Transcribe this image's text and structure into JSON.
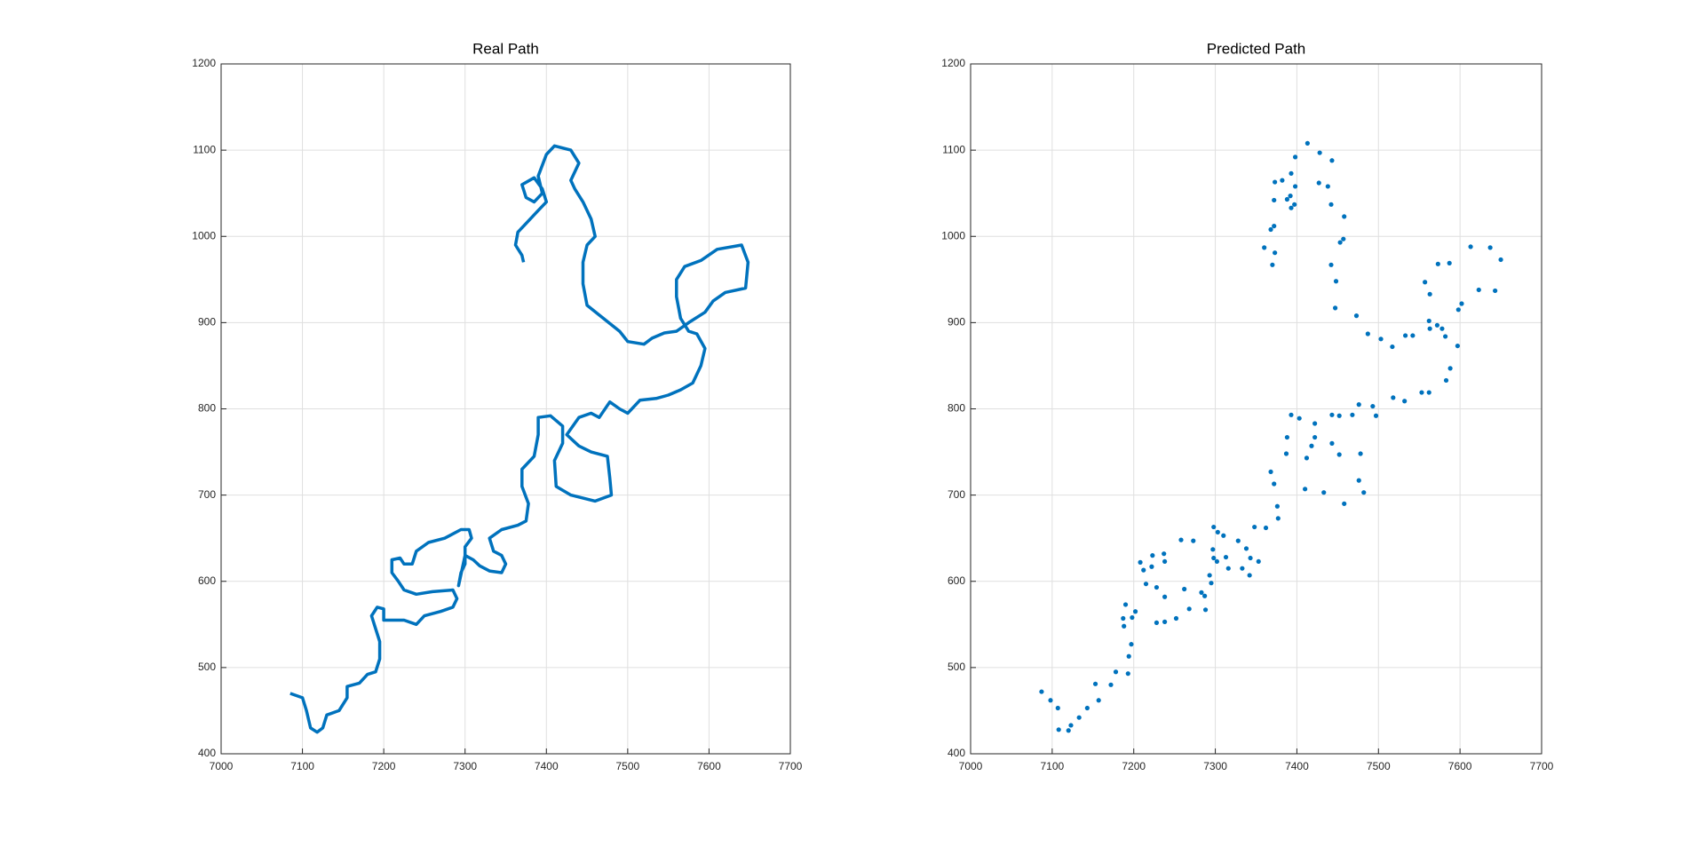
{
  "chart_data": [
    {
      "type": "line",
      "title": "Real Path",
      "color": "#0072bd",
      "grid": true,
      "xlim": [
        7000,
        7700
      ],
      "ylim": [
        400,
        1200
      ],
      "xticks": [
        7000,
        7100,
        7200,
        7300,
        7400,
        7500,
        7600,
        7700
      ],
      "yticks": [
        400,
        500,
        600,
        700,
        800,
        900,
        1000,
        1100,
        1200
      ],
      "x": [
        7085,
        7100,
        7105,
        7110,
        7118,
        7125,
        7130,
        7145,
        7155,
        7155,
        7170,
        7180,
        7190,
        7195,
        7195,
        7190,
        7185,
        7192,
        7200,
        7200,
        7225,
        7240,
        7250,
        7270,
        7285,
        7290,
        7285,
        7260,
        7240,
        7225,
        7218,
        7210,
        7210,
        7220,
        7225,
        7235,
        7240,
        7255,
        7275,
        7295,
        7305,
        7308,
        7300,
        7300,
        7295,
        7292,
        7300,
        7310,
        7318,
        7330,
        7345,
        7350,
        7345,
        7335,
        7330,
        7345,
        7365,
        7375,
        7378,
        7370,
        7370,
        7385,
        7390,
        7390,
        7405,
        7420,
        7420,
        7410,
        7412,
        7430,
        7460,
        7480,
        7478,
        7475,
        7455,
        7440,
        7425,
        7440,
        7455,
        7465,
        7478,
        7490,
        7500,
        7515,
        7535,
        7550,
        7565,
        7580,
        7590,
        7595,
        7585,
        7575,
        7565,
        7560,
        7560,
        7570,
        7590,
        7610,
        7640,
        7648,
        7645,
        7620,
        7605,
        7595,
        7575,
        7560,
        7545,
        7530,
        7520,
        7500,
        7490,
        7470,
        7450,
        7445,
        7445,
        7450,
        7460,
        7455,
        7445,
        7435,
        7430,
        7440,
        7430,
        7410,
        7400,
        7390,
        7395,
        7385,
        7375,
        7370,
        7385,
        7395,
        7400,
        7390,
        7375,
        7365,
        7362,
        7370,
        7372
      ],
      "values": [
        470,
        465,
        450,
        430,
        425,
        430,
        445,
        450,
        465,
        478,
        482,
        492,
        495,
        510,
        530,
        545,
        560,
        570,
        568,
        555,
        555,
        550,
        560,
        565,
        570,
        580,
        590,
        588,
        585,
        590,
        600,
        610,
        625,
        627,
        620,
        620,
        635,
        645,
        650,
        660,
        660,
        650,
        640,
        620,
        610,
        595,
        630,
        625,
        618,
        612,
        610,
        620,
        630,
        635,
        650,
        660,
        665,
        670,
        690,
        710,
        730,
        745,
        770,
        790,
        792,
        780,
        760,
        740,
        710,
        700,
        693,
        700,
        720,
        745,
        750,
        757,
        770,
        790,
        795,
        790,
        808,
        800,
        795,
        810,
        812,
        816,
        822,
        830,
        850,
        870,
        887,
        890,
        905,
        930,
        950,
        965,
        972,
        985,
        990,
        970,
        940,
        935,
        925,
        912,
        900,
        890,
        888,
        882,
        875,
        878,
        890,
        905,
        920,
        945,
        970,
        990,
        1000,
        1020,
        1040,
        1055,
        1065,
        1085,
        1100,
        1105,
        1095,
        1070,
        1050,
        1040,
        1045,
        1060,
        1068,
        1055,
        1040,
        1030,
        1015,
        1005,
        990,
        978,
        970
      ]
    },
    {
      "type": "scatter",
      "title": "Predicted Path",
      "color": "#0072bd",
      "grid": true,
      "xlim": [
        7000,
        7700
      ],
      "ylim": [
        400,
        1200
      ],
      "xticks": [
        7000,
        7100,
        7200,
        7300,
        7400,
        7500,
        7600,
        7700
      ],
      "yticks": [
        400,
        500,
        600,
        700,
        800,
        900,
        1000,
        1100,
        1200
      ],
      "x": [
        7087,
        7098,
        7107,
        7108,
        7120,
        7123,
        7133,
        7143,
        7157,
        7153,
        7172,
        7178,
        7193,
        7194,
        7197,
        7188,
        7187,
        7190,
        7202,
        7198,
        7228,
        7238,
        7252,
        7268,
        7288,
        7287,
        7283,
        7262,
        7238,
        7228,
        7215,
        7212,
        7208,
        7223,
        7222,
        7238,
        7237,
        7258,
        7273,
        7298,
        7303,
        7310,
        7297,
        7302,
        7293,
        7295,
        7298,
        7313,
        7316,
        7333,
        7342,
        7353,
        7343,
        7338,
        7328,
        7348,
        7362,
        7377,
        7376,
        7372,
        7368,
        7387,
        7388,
        7393,
        7403,
        7422,
        7418,
        7412,
        7410,
        7433,
        7458,
        7482,
        7476,
        7478,
        7452,
        7443,
        7422,
        7443,
        7452,
        7468,
        7476,
        7493,
        7497,
        7518,
        7532,
        7553,
        7562,
        7583,
        7588,
        7597,
        7582,
        7578,
        7562,
        7563,
        7557,
        7573,
        7587,
        7613,
        7637,
        7650,
        7643,
        7623,
        7602,
        7598,
        7572,
        7563,
        7542,
        7533,
        7517,
        7503,
        7487,
        7473,
        7447,
        7448,
        7442,
        7453,
        7457,
        7458,
        7442,
        7438,
        7427,
        7443,
        7428,
        7413,
        7398,
        7393,
        7392,
        7388,
        7372,
        7373,
        7382,
        7398,
        7397,
        7393,
        7372,
        7368,
        7360,
        7373,
        7370
      ],
      "values": [
        472,
        462,
        453,
        428,
        427,
        433,
        442,
        453,
        462,
        481,
        480,
        495,
        493,
        513,
        527,
        548,
        557,
        573,
        565,
        558,
        552,
        553,
        557,
        568,
        567,
        583,
        587,
        591,
        582,
        593,
        597,
        613,
        622,
        630,
        617,
        623,
        632,
        648,
        647,
        663,
        657,
        653,
        637,
        623,
        607,
        598,
        627,
        628,
        615,
        615,
        607,
        623,
        627,
        638,
        647,
        663,
        662,
        673,
        687,
        713,
        727,
        748,
        767,
        793,
        789,
        783,
        757,
        743,
        707,
        703,
        690,
        703,
        717,
        748,
        747,
        760,
        767,
        793,
        792,
        793,
        805,
        803,
        792,
        813,
        809,
        819,
        819,
        833,
        847,
        873,
        884,
        893,
        902,
        933,
        947,
        968,
        969,
        988,
        987,
        973,
        937,
        938,
        922,
        915,
        897,
        893,
        885,
        885,
        872,
        881,
        887,
        908,
        917,
        948,
        967,
        993,
        997,
        1023,
        1037,
        1058,
        1062,
        1088,
        1097,
        1108,
        1092,
        1073,
        1047,
        1043,
        1042,
        1063,
        1065,
        1058,
        1037,
        1033,
        1012,
        1008,
        987,
        981,
        967
      ]
    }
  ]
}
